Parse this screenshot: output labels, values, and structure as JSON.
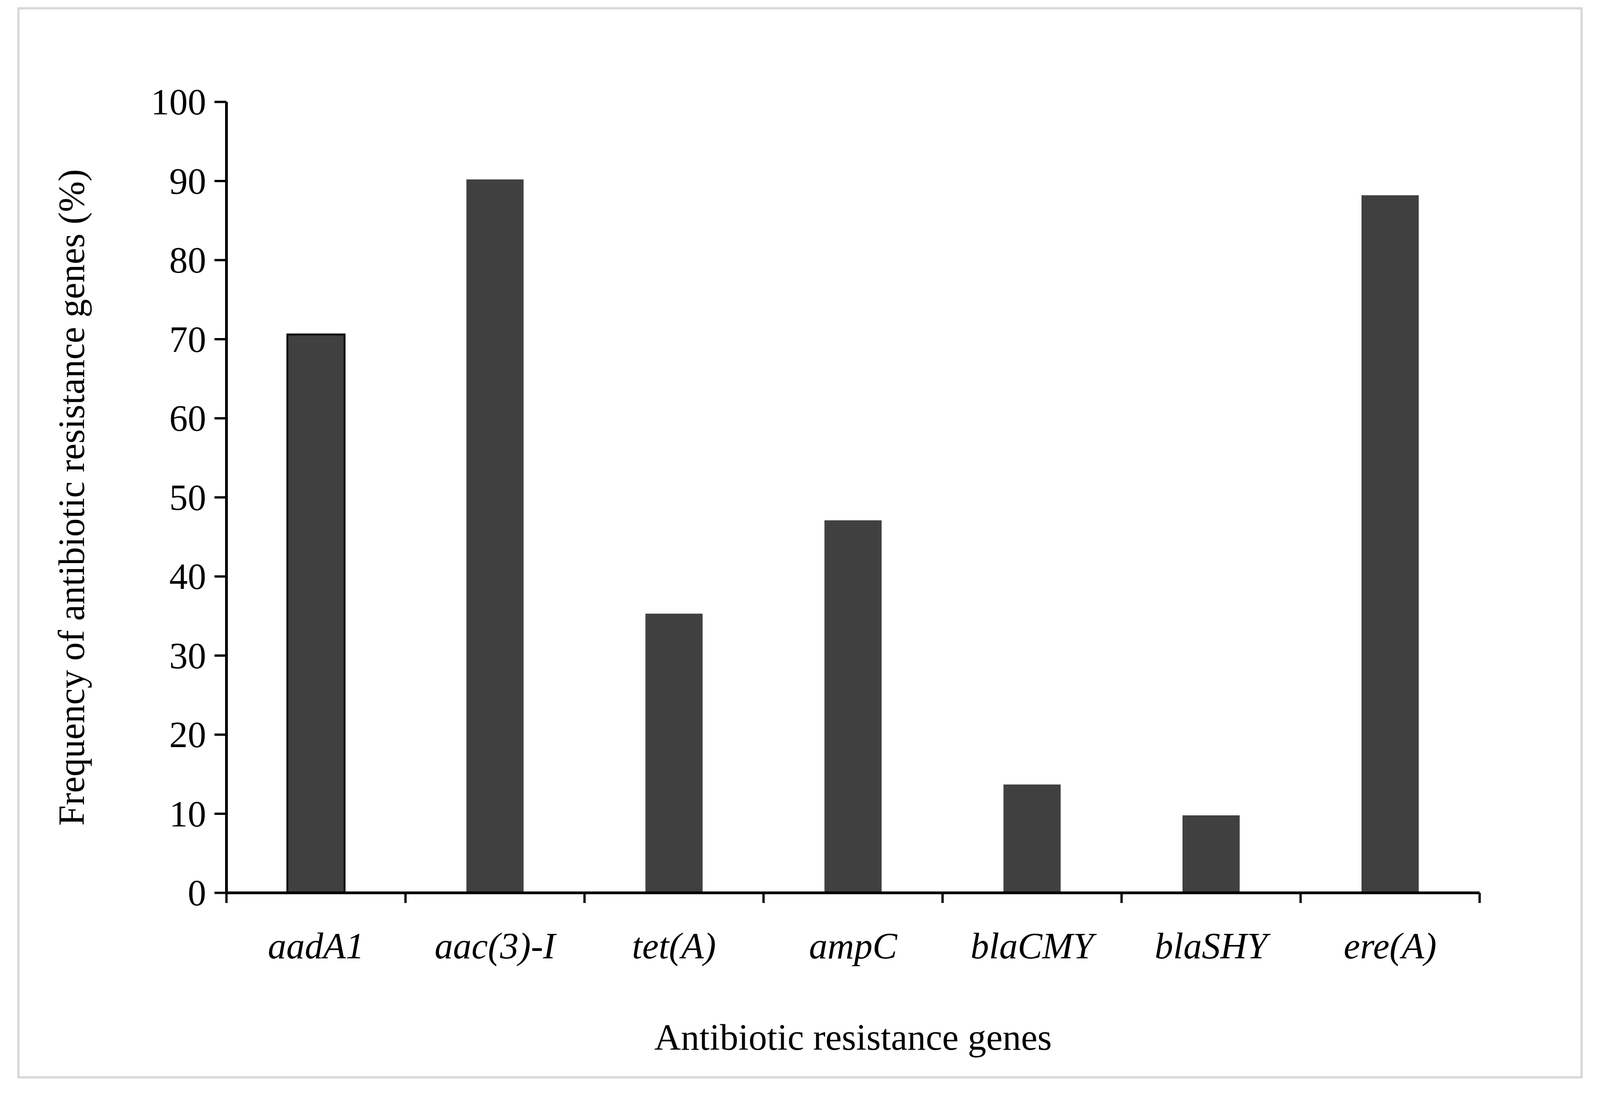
{
  "chart_data": {
    "type": "bar",
    "x_label": "Antibiotic resistance genes",
    "y_label": "Frequency of antibiotic resistance genes (%)",
    "categories": [
      "aadA1",
      "aac(3)-I",
      "tet(A)",
      "ampC",
      "blaCMY",
      "blaSHY",
      "ere(A)"
    ],
    "values": [
      70.6,
      90.2,
      35.3,
      47.1,
      13.7,
      9.8,
      88.2
    ],
    "color": "#404040",
    "ylim": [
      0,
      100
    ],
    "yticks": [
      0,
      10,
      20,
      30,
      40,
      50,
      60,
      70,
      80,
      90,
      100
    ],
    "grid": false
  }
}
